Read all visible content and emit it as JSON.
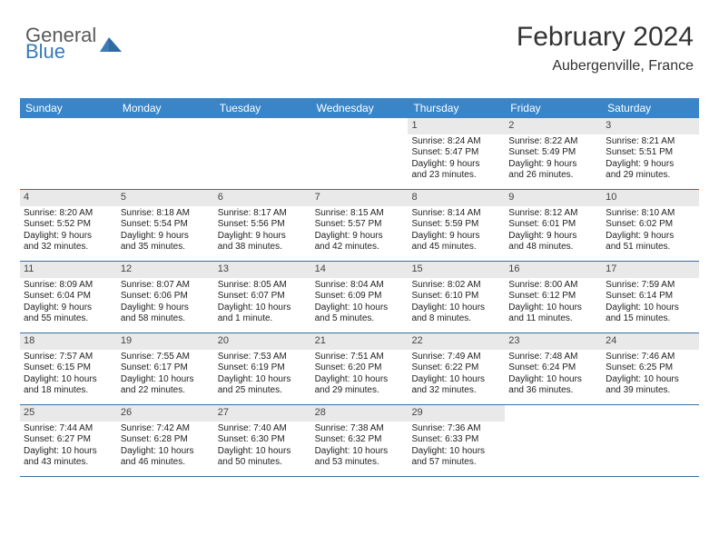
{
  "logo": {
    "text_top": "General",
    "text_bottom": "Blue"
  },
  "header": {
    "month_title": "February 2024",
    "location": "Aubergenville, France"
  },
  "colors": {
    "header_band": "#3a85c7",
    "row_divider": "#3a6fa0",
    "day_band": "#e9e9e9",
    "logo_blue": "#3a7ab8",
    "text": "#333333",
    "background": "#ffffff"
  },
  "fonts": {
    "title_size": 30,
    "location_size": 16,
    "dow_size": 12,
    "cell_size": 10
  },
  "dow": [
    "Sunday",
    "Monday",
    "Tuesday",
    "Wednesday",
    "Thursday",
    "Friday",
    "Saturday"
  ],
  "weeks": [
    [
      null,
      null,
      null,
      null,
      {
        "n": "1",
        "sr": "Sunrise: 8:24 AM",
        "ss": "Sunset: 5:47 PM",
        "d1": "Daylight: 9 hours",
        "d2": "and 23 minutes."
      },
      {
        "n": "2",
        "sr": "Sunrise: 8:22 AM",
        "ss": "Sunset: 5:49 PM",
        "d1": "Daylight: 9 hours",
        "d2": "and 26 minutes."
      },
      {
        "n": "3",
        "sr": "Sunrise: 8:21 AM",
        "ss": "Sunset: 5:51 PM",
        "d1": "Daylight: 9 hours",
        "d2": "and 29 minutes."
      }
    ],
    [
      {
        "n": "4",
        "sr": "Sunrise: 8:20 AM",
        "ss": "Sunset: 5:52 PM",
        "d1": "Daylight: 9 hours",
        "d2": "and 32 minutes."
      },
      {
        "n": "5",
        "sr": "Sunrise: 8:18 AM",
        "ss": "Sunset: 5:54 PM",
        "d1": "Daylight: 9 hours",
        "d2": "and 35 minutes."
      },
      {
        "n": "6",
        "sr": "Sunrise: 8:17 AM",
        "ss": "Sunset: 5:56 PM",
        "d1": "Daylight: 9 hours",
        "d2": "and 38 minutes."
      },
      {
        "n": "7",
        "sr": "Sunrise: 8:15 AM",
        "ss": "Sunset: 5:57 PM",
        "d1": "Daylight: 9 hours",
        "d2": "and 42 minutes."
      },
      {
        "n": "8",
        "sr": "Sunrise: 8:14 AM",
        "ss": "Sunset: 5:59 PM",
        "d1": "Daylight: 9 hours",
        "d2": "and 45 minutes."
      },
      {
        "n": "9",
        "sr": "Sunrise: 8:12 AM",
        "ss": "Sunset: 6:01 PM",
        "d1": "Daylight: 9 hours",
        "d2": "and 48 minutes."
      },
      {
        "n": "10",
        "sr": "Sunrise: 8:10 AM",
        "ss": "Sunset: 6:02 PM",
        "d1": "Daylight: 9 hours",
        "d2": "and 51 minutes."
      }
    ],
    [
      {
        "n": "11",
        "sr": "Sunrise: 8:09 AM",
        "ss": "Sunset: 6:04 PM",
        "d1": "Daylight: 9 hours",
        "d2": "and 55 minutes."
      },
      {
        "n": "12",
        "sr": "Sunrise: 8:07 AM",
        "ss": "Sunset: 6:06 PM",
        "d1": "Daylight: 9 hours",
        "d2": "and 58 minutes."
      },
      {
        "n": "13",
        "sr": "Sunrise: 8:05 AM",
        "ss": "Sunset: 6:07 PM",
        "d1": "Daylight: 10 hours",
        "d2": "and 1 minute."
      },
      {
        "n": "14",
        "sr": "Sunrise: 8:04 AM",
        "ss": "Sunset: 6:09 PM",
        "d1": "Daylight: 10 hours",
        "d2": "and 5 minutes."
      },
      {
        "n": "15",
        "sr": "Sunrise: 8:02 AM",
        "ss": "Sunset: 6:10 PM",
        "d1": "Daylight: 10 hours",
        "d2": "and 8 minutes."
      },
      {
        "n": "16",
        "sr": "Sunrise: 8:00 AM",
        "ss": "Sunset: 6:12 PM",
        "d1": "Daylight: 10 hours",
        "d2": "and 11 minutes."
      },
      {
        "n": "17",
        "sr": "Sunrise: 7:59 AM",
        "ss": "Sunset: 6:14 PM",
        "d1": "Daylight: 10 hours",
        "d2": "and 15 minutes."
      }
    ],
    [
      {
        "n": "18",
        "sr": "Sunrise: 7:57 AM",
        "ss": "Sunset: 6:15 PM",
        "d1": "Daylight: 10 hours",
        "d2": "and 18 minutes."
      },
      {
        "n": "19",
        "sr": "Sunrise: 7:55 AM",
        "ss": "Sunset: 6:17 PM",
        "d1": "Daylight: 10 hours",
        "d2": "and 22 minutes."
      },
      {
        "n": "20",
        "sr": "Sunrise: 7:53 AM",
        "ss": "Sunset: 6:19 PM",
        "d1": "Daylight: 10 hours",
        "d2": "and 25 minutes."
      },
      {
        "n": "21",
        "sr": "Sunrise: 7:51 AM",
        "ss": "Sunset: 6:20 PM",
        "d1": "Daylight: 10 hours",
        "d2": "and 29 minutes."
      },
      {
        "n": "22",
        "sr": "Sunrise: 7:49 AM",
        "ss": "Sunset: 6:22 PM",
        "d1": "Daylight: 10 hours",
        "d2": "and 32 minutes."
      },
      {
        "n": "23",
        "sr": "Sunrise: 7:48 AM",
        "ss": "Sunset: 6:24 PM",
        "d1": "Daylight: 10 hours",
        "d2": "and 36 minutes."
      },
      {
        "n": "24",
        "sr": "Sunrise: 7:46 AM",
        "ss": "Sunset: 6:25 PM",
        "d1": "Daylight: 10 hours",
        "d2": "and 39 minutes."
      }
    ],
    [
      {
        "n": "25",
        "sr": "Sunrise: 7:44 AM",
        "ss": "Sunset: 6:27 PM",
        "d1": "Daylight: 10 hours",
        "d2": "and 43 minutes."
      },
      {
        "n": "26",
        "sr": "Sunrise: 7:42 AM",
        "ss": "Sunset: 6:28 PM",
        "d1": "Daylight: 10 hours",
        "d2": "and 46 minutes."
      },
      {
        "n": "27",
        "sr": "Sunrise: 7:40 AM",
        "ss": "Sunset: 6:30 PM",
        "d1": "Daylight: 10 hours",
        "d2": "and 50 minutes."
      },
      {
        "n": "28",
        "sr": "Sunrise: 7:38 AM",
        "ss": "Sunset: 6:32 PM",
        "d1": "Daylight: 10 hours",
        "d2": "and 53 minutes."
      },
      {
        "n": "29",
        "sr": "Sunrise: 7:36 AM",
        "ss": "Sunset: 6:33 PM",
        "d1": "Daylight: 10 hours",
        "d2": "and 57 minutes."
      },
      null,
      null
    ]
  ]
}
